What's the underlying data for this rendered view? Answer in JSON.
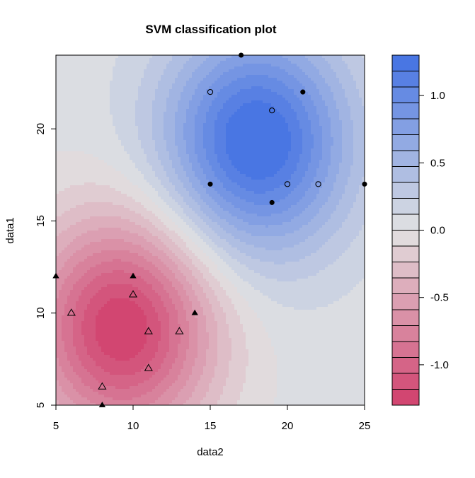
{
  "chart_data": {
    "type": "contour",
    "title": "SVM classification plot",
    "xlabel": "data2",
    "ylabel": "data1",
    "xlim": [
      5,
      25
    ],
    "ylim": [
      5,
      24
    ],
    "xticks": [
      "5",
      "10",
      "15",
      "20",
      "25"
    ],
    "yticks": [
      "5",
      "10",
      "15",
      "20"
    ],
    "colorbar": {
      "range": [
        -1.3,
        1.3
      ],
      "ticks": [
        "1.0",
        "0.5",
        "0.0",
        "-0.5",
        "-1.0"
      ],
      "low_color": "#D13F6C",
      "mid_color": "#E2E2E2",
      "high_color": "#4271E3"
    },
    "points": [
      {
        "x": 5,
        "y": 12,
        "shape": "triangle",
        "filled": true
      },
      {
        "x": 6,
        "y": 10,
        "shape": "triangle",
        "filled": false
      },
      {
        "x": 8,
        "y": 6,
        "shape": "triangle",
        "filled": false
      },
      {
        "x": 8,
        "y": 5,
        "shape": "triangle",
        "filled": true
      },
      {
        "x": 10,
        "y": 12,
        "shape": "triangle",
        "filled": true
      },
      {
        "x": 10,
        "y": 11,
        "shape": "triangle",
        "filled": false
      },
      {
        "x": 11,
        "y": 9,
        "shape": "triangle",
        "filled": false
      },
      {
        "x": 11,
        "y": 7,
        "shape": "triangle",
        "filled": false
      },
      {
        "x": 13,
        "y": 9,
        "shape": "triangle",
        "filled": false
      },
      {
        "x": 14,
        "y": 10,
        "shape": "triangle",
        "filled": true
      },
      {
        "x": 15,
        "y": 22,
        "shape": "circle",
        "filled": false
      },
      {
        "x": 15,
        "y": 17,
        "shape": "circle",
        "filled": true
      },
      {
        "x": 17,
        "y": 24,
        "shape": "circle",
        "filled": true
      },
      {
        "x": 19,
        "y": 21,
        "shape": "circle",
        "filled": false
      },
      {
        "x": 19,
        "y": 16,
        "shape": "circle",
        "filled": true
      },
      {
        "x": 20,
        "y": 17,
        "shape": "circle",
        "filled": false
      },
      {
        "x": 21,
        "y": 22,
        "shape": "circle",
        "filled": true
      },
      {
        "x": 22,
        "y": 17,
        "shape": "circle",
        "filled": false
      },
      {
        "x": 25,
        "y": 17,
        "shape": "circle",
        "filled": true
      }
    ],
    "decision_function": {
      "intercept": 0.05,
      "centers": [
        {
          "x": 18,
          "y": 19.3,
          "weight": 1.3
        },
        {
          "x": 9.3,
          "y": 9.2,
          "weight": -1.35
        }
      ]
    }
  }
}
